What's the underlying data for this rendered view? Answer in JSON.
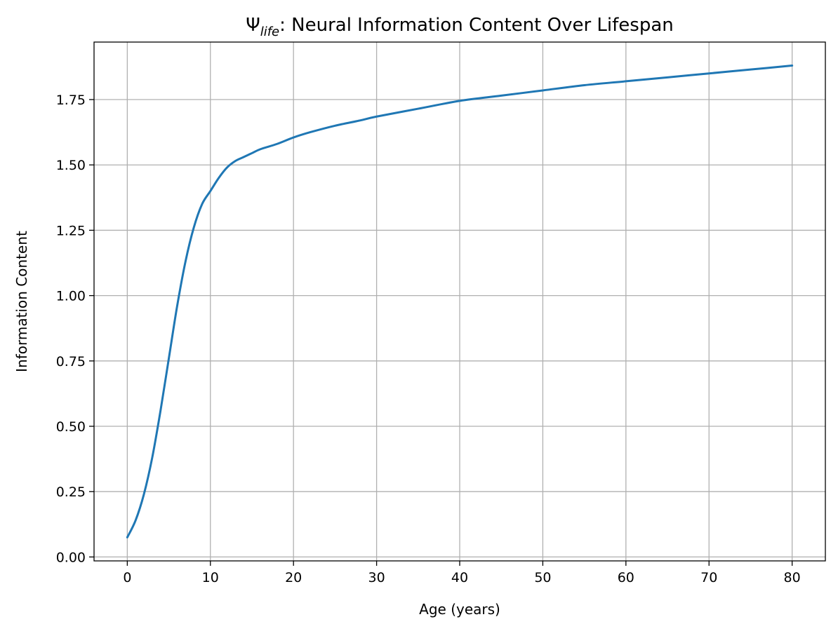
{
  "chart_data": {
    "type": "line",
    "title": {
      "symbol": "Ψ",
      "subscript": "life",
      "rest": ": Neural Information Content Over Lifespan"
    },
    "xlabel": "Age (years)",
    "ylabel": "Information Content",
    "xlim": [
      -4,
      84
    ],
    "ylim": [
      -0.015,
      1.97
    ],
    "xticks": [
      0,
      10,
      20,
      30,
      40,
      50,
      60,
      70,
      80
    ],
    "xtick_labels": [
      "0",
      "10",
      "20",
      "30",
      "40",
      "50",
      "60",
      "70",
      "80"
    ],
    "yticks": [
      0.0,
      0.25,
      0.5,
      0.75,
      1.0,
      1.25,
      1.5,
      1.75
    ],
    "ytick_labels": [
      "0.00",
      "0.25",
      "0.50",
      "0.75",
      "1.00",
      "1.25",
      "1.50",
      "1.75"
    ],
    "grid": true,
    "colors": {
      "line": "#1f77b4",
      "grid": "#b0b0b0",
      "axes": "#000000"
    },
    "series": [
      {
        "x": [
          0,
          1,
          2,
          3,
          4,
          5,
          6,
          7,
          8,
          9,
          10,
          11,
          12,
          13,
          14,
          15,
          16,
          18,
          20,
          22,
          25,
          28,
          30,
          35,
          40,
          45,
          50,
          55,
          60,
          65,
          70,
          75,
          80
        ],
        "values": [
          0.075,
          0.14,
          0.24,
          0.38,
          0.56,
          0.76,
          0.96,
          1.13,
          1.26,
          1.35,
          1.4,
          1.45,
          1.49,
          1.515,
          1.53,
          1.545,
          1.56,
          1.58,
          1.605,
          1.625,
          1.65,
          1.67,
          1.685,
          1.715,
          1.745,
          1.765,
          1.785,
          1.805,
          1.82,
          1.835,
          1.85,
          1.865,
          1.88
        ]
      }
    ]
  }
}
